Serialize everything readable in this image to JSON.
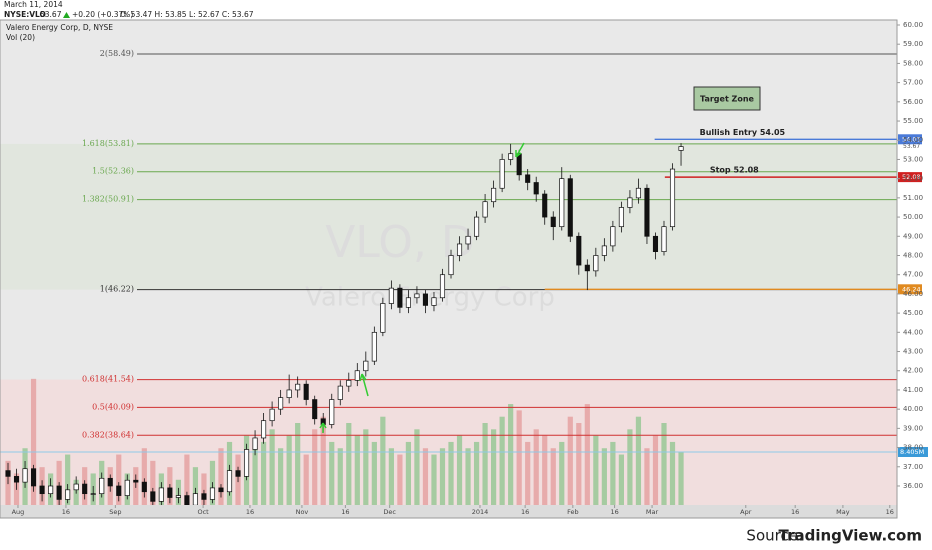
{
  "header": {
    "date": "March 11, 2014",
    "symbol": "NYSE:VLO",
    "price": "53.67",
    "change": "+0.20 (+0.37%)",
    "ohlc": "O: 53.47 H: 53.85 L: 52.67 C: 53.67",
    "name": "Valero Energy Corp, D, NYSE",
    "indicator": "Vol (20)"
  },
  "watermark": [
    "VLO, D",
    "Valero Energy Corp"
  ],
  "source": {
    "prefix": "Source:",
    "site": "TradingView.com"
  },
  "chart_data": {
    "type": "candlestick",
    "up_color": "#ffffff",
    "down_color": "#111111",
    "volume_up_color": "#8cc48c",
    "volume_down_color": "#e39a9a",
    "xlim": [
      -0.94,
      104.35
    ],
    "ylim": [
      35.01,
      60.26
    ],
    "y2lim": [
      0,
      76.9
    ],
    "xticks": [
      {
        "value": 1.17,
        "label": "Aug"
      },
      {
        "value": 6.8,
        "label": "16"
      },
      {
        "value": 12.6,
        "label": "Sep"
      },
      {
        "value": 22.9,
        "label": "Oct"
      },
      {
        "value": 28.4,
        "label": "16"
      },
      {
        "value": 34.5,
        "label": "Nov"
      },
      {
        "value": 39.6,
        "label": "16"
      },
      {
        "value": 44.8,
        "label": "Dec"
      },
      {
        "value": 55.4,
        "label": "2014"
      },
      {
        "value": 60.7,
        "label": "16"
      },
      {
        "value": 66.3,
        "label": "Feb"
      },
      {
        "value": 71.2,
        "label": "16"
      },
      {
        "value": 75.6,
        "label": "Mar"
      },
      {
        "value": 86.6,
        "label": "Apr"
      },
      {
        "value": 92.4,
        "label": "16"
      },
      {
        "value": 98,
        "label": "May"
      },
      {
        "value": 103.5,
        "label": "16"
      }
    ],
    "yticks": [
      {
        "value": 36,
        "label": "36.00"
      },
      {
        "value": 37,
        "label": "37.00"
      },
      {
        "value": 38,
        "label": "38.00"
      },
      {
        "value": 39,
        "label": "39.00"
      },
      {
        "value": 40,
        "label": "40.00"
      },
      {
        "value": 41,
        "label": "41.00"
      },
      {
        "value": 42,
        "label": "42.00"
      },
      {
        "value": 43,
        "label": "43.00"
      },
      {
        "value": 44,
        "label": "44.00"
      },
      {
        "value": 45,
        "label": "45.00"
      },
      {
        "value": 46,
        "label": "46.00"
      },
      {
        "value": 47,
        "label": "47.00"
      },
      {
        "value": 48,
        "label": "48.00"
      },
      {
        "value": 49,
        "label": "49.00"
      },
      {
        "value": 50,
        "label": "50.00"
      },
      {
        "value": 51,
        "label": "51.00"
      },
      {
        "value": 52,
        "label": "52.00"
      },
      {
        "value": 53,
        "label": "53.00"
      },
      {
        "value": 54,
        "label": "54.00"
      },
      {
        "value": 55,
        "label": "55.00"
      },
      {
        "value": 56,
        "label": "56.00"
      },
      {
        "value": 57,
        "label": "57.00"
      },
      {
        "value": 58,
        "label": "58.00"
      },
      {
        "value": 59,
        "label": "59.00"
      },
      {
        "value": 60,
        "label": "60.00"
      }
    ],
    "y2ticks": [
      {
        "value": 8.405,
        "label": "8.405M"
      }
    ],
    "candles": {
      "open": [
        36.8,
        36.5,
        36.2,
        36.9,
        36.0,
        35.6,
        36.0,
        35.3,
        35.8,
        36.1,
        35.6,
        35.6,
        36.4,
        36.0,
        35.5,
        36.3,
        36.2,
        35.7,
        35.2,
        35.9,
        35.4,
        35.5,
        35.0,
        35.6,
        35.3,
        35.9,
        35.7,
        36.8,
        36.5,
        37.9,
        38.5,
        39.4,
        40.0,
        40.6,
        41.0,
        41.3,
        40.5,
        39.5,
        39.2,
        40.5,
        41.2,
        41.5,
        42.0,
        42.5,
        44.0,
        45.5,
        46.3,
        45.3,
        45.8,
        46.0,
        45.4,
        45.8,
        47.0,
        48.0,
        48.6,
        49.0,
        50.0,
        50.8,
        51.5,
        53.0,
        53.3,
        52.2,
        51.8,
        51.2,
        50.0,
        49.5,
        52.0,
        49.0,
        47.5,
        47.2,
        48.0,
        48.5,
        49.5,
        50.5,
        51.0,
        51.5,
        49.0,
        48.2,
        49.5,
        53.47
      ],
      "high": [
        37.2,
        36.9,
        37.3,
        37.1,
        36.3,
        36.4,
        36.2,
        36.1,
        36.5,
        36.3,
        36.0,
        36.7,
        36.6,
        36.2,
        36.6,
        36.6,
        36.4,
        35.9,
        36.2,
        36.1,
        35.9,
        35.7,
        35.9,
        35.8,
        36.2,
        36.1,
        37.1,
        37.0,
        38.2,
        38.9,
        39.8,
        40.4,
        41.0,
        41.8,
        41.7,
        41.5,
        40.7,
        39.8,
        40.8,
        41.5,
        41.9,
        42.4,
        43.0,
        44.3,
        45.8,
        46.7,
        46.5,
        46.2,
        46.4,
        46.2,
        46.1,
        47.3,
        48.3,
        49.0,
        49.4,
        50.3,
        51.2,
        51.9,
        53.3,
        53.81,
        53.5,
        52.5,
        52.1,
        51.4,
        50.3,
        52.6,
        52.2,
        49.2,
        47.8,
        48.4,
        48.9,
        49.8,
        50.8,
        51.4,
        52.0,
        51.7,
        49.2,
        49.8,
        52.8,
        53.85
      ],
      "low": [
        36.1,
        35.8,
        35.9,
        35.7,
        35.2,
        35.4,
        35.0,
        35.1,
        35.6,
        35.3,
        35.2,
        35.4,
        35.7,
        35.2,
        35.3,
        35.9,
        35.4,
        34.9,
        35.0,
        35.1,
        35.1,
        34.7,
        34.8,
        35.0,
        35.1,
        35.4,
        35.5,
        36.2,
        36.3,
        37.6,
        38.2,
        39.1,
        39.7,
        40.3,
        40.6,
        40.2,
        39.2,
        38.8,
        39.0,
        40.2,
        40.9,
        41.2,
        41.7,
        42.3,
        43.8,
        45.2,
        45.0,
        45.0,
        45.5,
        45.0,
        45.1,
        45.6,
        46.8,
        47.7,
        48.3,
        48.8,
        49.7,
        50.5,
        51.3,
        52.7,
        51.9,
        51.4,
        50.8,
        49.6,
        48.8,
        49.3,
        48.7,
        47.0,
        46.2,
        46.9,
        47.7,
        48.2,
        49.2,
        50.2,
        50.7,
        48.6,
        47.8,
        48.0,
        49.3,
        52.67
      ],
      "close": [
        36.5,
        36.2,
        36.9,
        36.0,
        35.6,
        36.0,
        35.3,
        35.8,
        36.1,
        35.6,
        35.6,
        36.4,
        36.0,
        35.5,
        36.3,
        36.2,
        35.7,
        35.2,
        35.9,
        35.4,
        35.5,
        35.0,
        35.6,
        35.3,
        35.9,
        35.7,
        36.8,
        36.5,
        37.9,
        38.5,
        39.4,
        40.0,
        40.6,
        41.0,
        41.3,
        40.5,
        39.5,
        39.2,
        40.5,
        41.2,
        41.5,
        42.0,
        42.5,
        44.0,
        45.5,
        46.3,
        45.3,
        45.8,
        46.0,
        45.4,
        45.8,
        47.0,
        48.0,
        48.6,
        49.0,
        50.0,
        50.8,
        51.5,
        53.0,
        53.3,
        52.2,
        51.8,
        51.2,
        50.0,
        49.5,
        52.0,
        49.0,
        47.5,
        47.2,
        48.0,
        48.5,
        49.5,
        50.5,
        51.0,
        51.5,
        49.0,
        48.2,
        49.5,
        52.5,
        53.67
      ]
    },
    "volume": {
      "name": "Vol (20)",
      "axis": "y2",
      "values": [
        7,
        5,
        9,
        20,
        6,
        5,
        7,
        8,
        4,
        6,
        5,
        7,
        6,
        8,
        5,
        6,
        9,
        7,
        5,
        6,
        4,
        8,
        6,
        5,
        7,
        9,
        10,
        8,
        11,
        9,
        10,
        12,
        9,
        11,
        13,
        8,
        12,
        14,
        10,
        9,
        13,
        11,
        12,
        10,
        14,
        9,
        8,
        10,
        12,
        9,
        8,
        9,
        10,
        11,
        9,
        10,
        13,
        12,
        14,
        16,
        15,
        10,
        12,
        11,
        9,
        10,
        14,
        13,
        16,
        11,
        9,
        10,
        8,
        12,
        14,
        9,
        11,
        13,
        10,
        8.405
      ]
    },
    "fib_levels": [
      {
        "value": 58.49,
        "label": "2(58.49)",
        "color": "#555555"
      },
      {
        "value": 53.81,
        "label": "1.618(53.81)",
        "color": "#6aa84f"
      },
      {
        "value": 52.36,
        "label": "1.5(52.36)",
        "color": "#6aa84f"
      },
      {
        "value": 50.91,
        "label": "1.382(50.91)",
        "color": "#6aa84f"
      },
      {
        "value": 46.22,
        "label": "1(46.22)",
        "color": "#333333"
      },
      {
        "value": 41.54,
        "label": "0.618(41.54)",
        "color": "#d03030"
      },
      {
        "value": 40.09,
        "label": "0.5(40.09)",
        "color": "#d03030"
      },
      {
        "value": 38.64,
        "label": "0.382(38.64)",
        "color": "#d03030"
      }
    ],
    "levels": [
      {
        "value": 54.05,
        "label": "Bullish Entry 54.05",
        "color": "#4a7ad8",
        "from": 75.9
      },
      {
        "value": 52.08,
        "label": "Stop 52.08",
        "color": "#d02020",
        "from": 77.1
      },
      {
        "value": 46.24,
        "color": "#e08a20",
        "from": 63
      }
    ],
    "target_zone": "Target Zone"
  }
}
